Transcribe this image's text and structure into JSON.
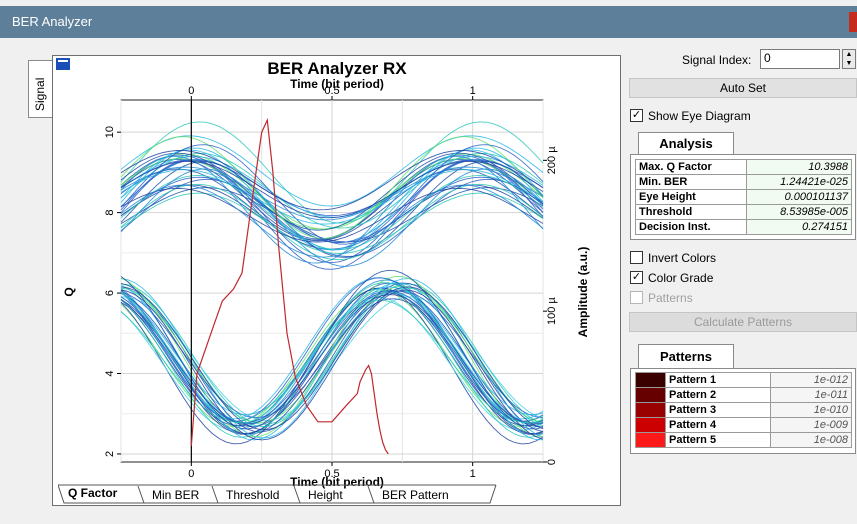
{
  "window": {
    "title": "BER Analyzer"
  },
  "left_tab": {
    "label": "Signal"
  },
  "chart": {
    "title": "BER Analyzer RX",
    "top_axis_label": "Time (bit period)",
    "bottom_axis_label": "Time (bit period)",
    "left_axis_label": "Q",
    "right_axis_label": "Amplitude (a.u.)",
    "x_ticks": [
      "0",
      "0.5",
      "1"
    ],
    "q_ticks": [
      "10",
      "8",
      "6",
      "4",
      "2"
    ],
    "amp_ticks": [
      "200 µ",
      "100 µ",
      "0"
    ]
  },
  "chart_data": {
    "type": "line",
    "title": "BER Analyzer RX",
    "xlabel": "Time (bit period)",
    "ylabel": "Q",
    "y2label": "Amplitude (a.u.)",
    "xlim": [
      -0.25,
      1.25
    ],
    "ylim": [
      1.8,
      10.8
    ],
    "y2lim": [
      0,
      240
    ],
    "grid": true,
    "series": [
      {
        "x": [
          0.0,
          0.02,
          0.05,
          0.08,
          0.11,
          0.15,
          0.18,
          0.2,
          0.23,
          0.25,
          0.27,
          0.29,
          0.31,
          0.34,
          0.37,
          0.41,
          0.45,
          0.5,
          0.55,
          0.59,
          0.6,
          0.62,
          0.63,
          0.64,
          0.65,
          0.66,
          0.67,
          0.68,
          0.69,
          0.7
        ],
        "values": [
          2.2,
          4.0,
          4.6,
          5.2,
          5.8,
          6.1,
          6.5,
          7.5,
          9.0,
          10.0,
          10.3,
          9.0,
          7.2,
          5.0,
          3.9,
          3.2,
          2.8,
          2.8,
          3.2,
          3.5,
          3.8,
          4.1,
          4.2,
          4.0,
          3.5,
          3.0,
          2.6,
          2.3,
          2.1,
          2.0
        ]
      }
    ],
    "eye_diagram": {
      "shown": true,
      "color_grade": true,
      "bit_period_range": [
        -0.25,
        1.25
      ]
    }
  },
  "bottom_tabs": [
    {
      "label": "Q Factor"
    },
    {
      "label": "Min BER"
    },
    {
      "label": "Threshold"
    },
    {
      "label": "Height"
    },
    {
      "label": "BER Pattern"
    }
  ],
  "signal_index": {
    "label": "Signal Index:",
    "value": "0"
  },
  "auto_set": {
    "label": "Auto Set"
  },
  "show_eye": {
    "label": "Show Eye Diagram",
    "checked": true
  },
  "analysis": {
    "tab_label": "Analysis",
    "rows": [
      {
        "key": "Max. Q Factor",
        "value": "10.3988"
      },
      {
        "key": "Min. BER",
        "value": "1.24421e-025"
      },
      {
        "key": "Eye Height",
        "value": "0.000101137"
      },
      {
        "key": "Threshold",
        "value": "8.53985e-005"
      },
      {
        "key": "Decision Inst.",
        "value": "0.274151"
      }
    ]
  },
  "invert_colors": {
    "label": "Invert Colors",
    "checked": false
  },
  "color_grade": {
    "label": "Color Grade",
    "checked": true
  },
  "patterns_chk": {
    "label": "Patterns",
    "checked": false
  },
  "calc_patterns": {
    "label": "Calculate Patterns"
  },
  "patterns": {
    "tab_label": "Patterns",
    "rows": [
      {
        "name": "Pattern 1",
        "value": "1e-012",
        "color": "#3a0000"
      },
      {
        "name": "Pattern 2",
        "value": "1e-011",
        "color": "#660000"
      },
      {
        "name": "Pattern 3",
        "value": "1e-010",
        "color": "#990000"
      },
      {
        "name": "Pattern 4",
        "value": "1e-009",
        "color": "#cc0000"
      },
      {
        "name": "Pattern 5",
        "value": "1e-008",
        "color": "#ff1a1a"
      }
    ]
  }
}
